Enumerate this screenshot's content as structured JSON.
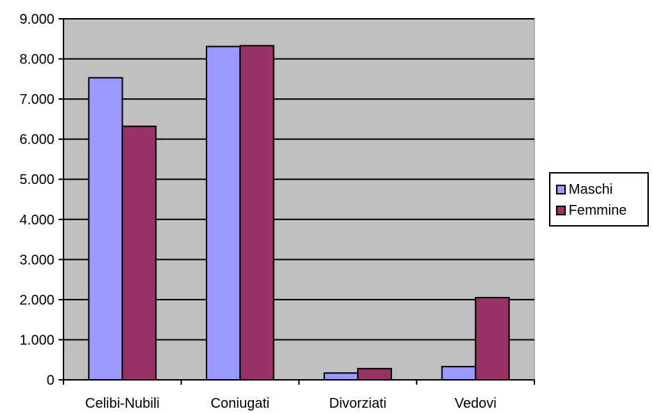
{
  "chart_data": {
    "type": "bar",
    "categories": [
      "Celibi-Nubili",
      "Coniugati",
      "Divorziati",
      "Vedovi"
    ],
    "series": [
      {
        "name": "Maschi",
        "values": [
          7530,
          8310,
          170,
          330
        ],
        "color": "#9999FF"
      },
      {
        "name": "Femmine",
        "values": [
          6320,
          8330,
          280,
          2050
        ],
        "color": "#993366"
      }
    ],
    "yticks": [
      "0",
      "1.000",
      "2.000",
      "3.000",
      "4.000",
      "5.000",
      "6.000",
      "7.000",
      "8.000",
      "9.000"
    ],
    "ylim": [
      0,
      9000
    ],
    "grid": true,
    "plot_background": "#C0C0C0",
    "legend_position": "right"
  }
}
